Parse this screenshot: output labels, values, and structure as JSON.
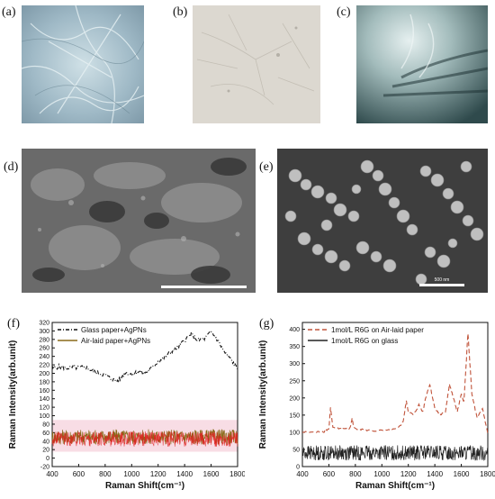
{
  "panel_labels": {
    "a": "(a)",
    "b": "(b)",
    "c": "(c)",
    "d": "(d)",
    "e": "(e)",
    "f": "(f)",
    "g": "(g)"
  },
  "images": {
    "a": {
      "kind": "optical micrograph",
      "tone": "#9fb9c6"
    },
    "b": {
      "kind": "optical micrograph",
      "tone": "#d9d6cf"
    },
    "c": {
      "kind": "optical micrograph",
      "tone": "#6f8f93"
    },
    "d": {
      "kind": "SEM micrograph",
      "tone": "#6a6a6a"
    },
    "e": {
      "kind": "SEM micrograph",
      "tone": "#4a4a4a",
      "scale_text": "500 nm"
    }
  },
  "chart_data": [
    {
      "type": "line",
      "panel": "f",
      "title": "",
      "xlabel": "Raman Shift(cm⁻¹)",
      "ylabel": "Raman Intensity(arb.unit)",
      "xlim": [
        400,
        1800
      ],
      "ylim": [
        -20,
        320
      ],
      "x_ticks": [
        "400",
        "600",
        "800",
        "1000",
        "1200",
        "1400",
        "1600",
        "1800"
      ],
      "y_ticks": [
        "-20",
        "0",
        "20",
        "40",
        "60",
        "80",
        "100",
        "120",
        "140",
        "160",
        "180",
        "200",
        "220",
        "240",
        "260",
        "280",
        "300",
        "320"
      ],
      "legend_position": "top-left",
      "series": [
        {
          "name": "Glass paper+AgPNs",
          "style": "dash-dot",
          "color": "#111111",
          "x": [
            400,
            450,
            500,
            550,
            600,
            650,
            700,
            750,
            800,
            850,
            900,
            950,
            1000,
            1050,
            1100,
            1150,
            1200,
            1250,
            1300,
            1350,
            1400,
            1450,
            1500,
            1550,
            1600,
            1650,
            1700,
            1750,
            1800
          ],
          "y": [
            210,
            216,
            212,
            214,
            213,
            215,
            206,
            200,
            196,
            186,
            182,
            202,
            198,
            204,
            200,
            212,
            228,
            238,
            252,
            262,
            278,
            292,
            278,
            282,
            298,
            278,
            250,
            232,
            210
          ]
        },
        {
          "name": "Air-laid paper+AgPNs",
          "style": "solid",
          "color": "#8a6a1a",
          "x": [
            400,
            1800
          ],
          "y": [
            50,
            50
          ],
          "noise": 18
        }
      ],
      "band": {
        "from": 15,
        "to": 90,
        "color": "#f4c6d4"
      }
    },
    {
      "type": "line",
      "panel": "g",
      "title": "",
      "xlabel": "Raman Shift(cm⁻¹)",
      "ylabel": "Raman Intensity(arb.unit)",
      "xlim": [
        400,
        1800
      ],
      "ylim": [
        0,
        420
      ],
      "x_ticks": [
        "400",
        "600",
        "800",
        "1000",
        "1200",
        "1400",
        "1600",
        "1800"
      ],
      "y_ticks": [
        "0",
        "50",
        "100",
        "150",
        "200",
        "250",
        "300",
        "350",
        "400"
      ],
      "legend_position": "top-left",
      "series": [
        {
          "name": "1mol/L R6G on Air-laid paper",
          "style": "dashed",
          "color": "#c0533a",
          "x": [
            400,
            500,
            560,
            600,
            612,
            630,
            700,
            760,
            775,
            790,
            850,
            950,
            1050,
            1120,
            1160,
            1185,
            1200,
            1240,
            1280,
            1310,
            1330,
            1362,
            1400,
            1440,
            1480,
            1510,
            1540,
            1570,
            1600,
            1620,
            1650,
            1680,
            1720,
            1760,
            1800
          ],
          "y": [
            100,
            100,
            102,
            110,
            170,
            115,
            110,
            112,
            140,
            112,
            108,
            104,
            105,
            110,
            130,
            190,
            160,
            150,
            180,
            160,
            200,
            240,
            170,
            150,
            160,
            240,
            200,
            160,
            210,
            190,
            390,
            210,
            140,
            170,
            95
          ]
        },
        {
          "name": "1mol/L R6G on glass",
          "style": "solid",
          "color": "#222222",
          "x": [
            400,
            1800
          ],
          "y": [
            40,
            40
          ],
          "noise": 22
        }
      ]
    }
  ]
}
